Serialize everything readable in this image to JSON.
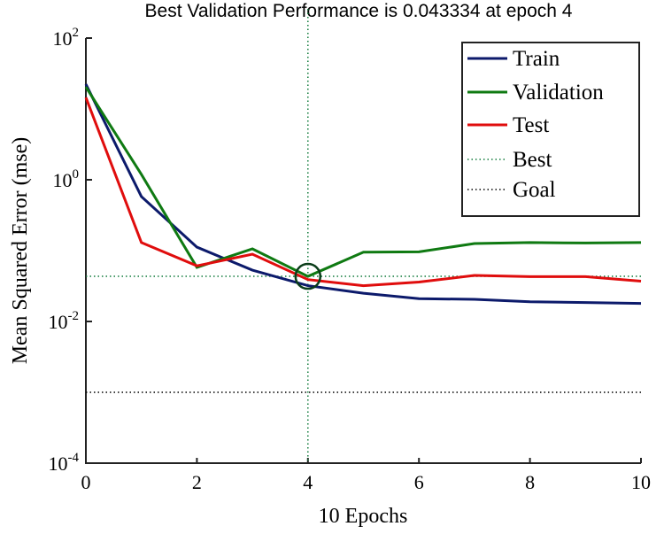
{
  "chart_data": {
    "type": "line",
    "title": "Best Validation Performance is 0.043334 at epoch 4",
    "xlabel": "10 Epochs",
    "ylabel": "Mean Squared Error  (mse)",
    "xlim": [
      0,
      10
    ],
    "ylim": [
      0.0001,
      100
    ],
    "yscale": "log",
    "grid": false,
    "legend_position": "top-right",
    "x_ticks": [
      0,
      2,
      4,
      6,
      8,
      10
    ],
    "y_ticks": [
      {
        "base": "10",
        "exp": "2",
        "value": 100
      },
      {
        "base": "10",
        "exp": "0",
        "value": 1
      },
      {
        "base": "10",
        "exp": "-2",
        "value": 0.01
      },
      {
        "base": "10",
        "exp": "-4",
        "value": 0.0001
      }
    ],
    "x": [
      0,
      1,
      2,
      3,
      4,
      5,
      6,
      7,
      8,
      9,
      10
    ],
    "series": [
      {
        "name": "Train",
        "color": "#0c1a6b",
        "values": [
          22.4,
          0.58,
          0.112,
          0.053,
          0.032,
          0.025,
          0.021,
          0.0205,
          0.019,
          0.0185,
          0.018
        ]
      },
      {
        "name": "Validation",
        "color": "#0f7a12",
        "values": [
          20.4,
          1.19,
          0.058,
          0.106,
          0.043334,
          0.095,
          0.096,
          0.126,
          0.13,
          0.128,
          0.13
        ]
      },
      {
        "name": "Test",
        "color": "#e00d0d",
        "values": [
          14.5,
          0.13,
          0.061,
          0.089,
          0.039,
          0.032,
          0.036,
          0.0446,
          0.043,
          0.043,
          0.037
        ]
      }
    ],
    "best": {
      "name": "Best",
      "epoch": 4,
      "value": 0.043334,
      "color": "#0f7a3a"
    },
    "goal": {
      "name": "Goal",
      "value": 0.001,
      "color": "#000000"
    }
  }
}
